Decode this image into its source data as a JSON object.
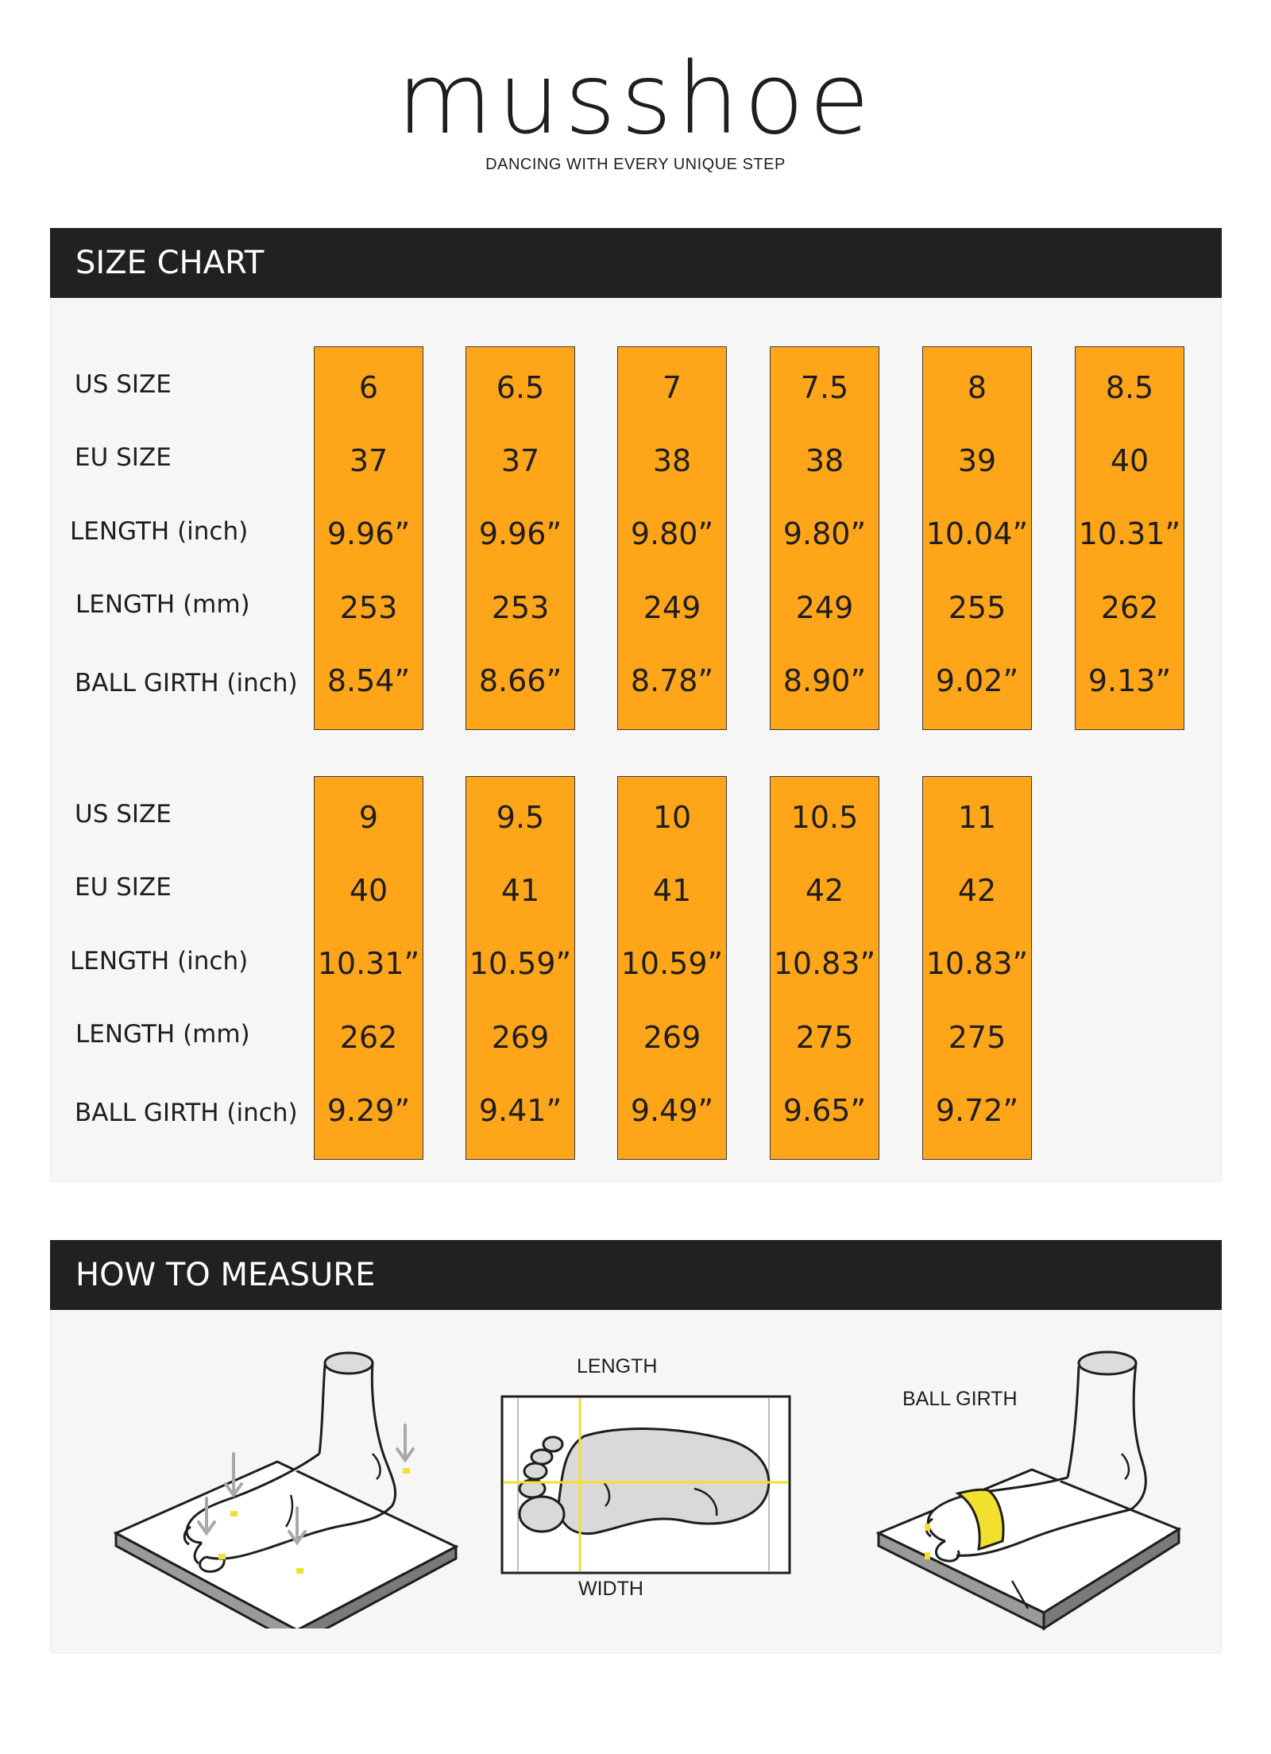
{
  "brand": {
    "logo": "musshoe",
    "tagline": "DANCING WITH EVERY UNIQUE STEP"
  },
  "size_chart": {
    "title": "SIZE CHART",
    "row_labels": [
      "US SIZE",
      "EU SIZE",
      "LENGTH (inch)",
      "LENGTH (mm)",
      "BALL GIRTH (inch)"
    ],
    "blocks": [
      {
        "columns": [
          {
            "us": "6",
            "eu": "37",
            "length_inch": "9.96”",
            "length_mm": "253",
            "ball_girth": "8.54”"
          },
          {
            "us": "6.5",
            "eu": "37",
            "length_inch": "9.96”",
            "length_mm": "253",
            "ball_girth": "8.66”"
          },
          {
            "us": "7",
            "eu": "38",
            "length_inch": "9.80”",
            "length_mm": "249",
            "ball_girth": "8.78”"
          },
          {
            "us": "7.5",
            "eu": "38",
            "length_inch": "9.80”",
            "length_mm": "249",
            "ball_girth": "8.90”"
          },
          {
            "us": "8",
            "eu": "39",
            "length_inch": "10.04”",
            "length_mm": "255",
            "ball_girth": "9.02”"
          },
          {
            "us": "8.5",
            "eu": "40",
            "length_inch": "10.31”",
            "length_mm": "262",
            "ball_girth": "9.13”"
          }
        ]
      },
      {
        "columns": [
          {
            "us": "9",
            "eu": "40",
            "length_inch": "10.31”",
            "length_mm": "262",
            "ball_girth": "9.29”"
          },
          {
            "us": "9.5",
            "eu": "41",
            "length_inch": "10.59”",
            "length_mm": "269",
            "ball_girth": "9.41”"
          },
          {
            "us": "10",
            "eu": "41",
            "length_inch": "10.59”",
            "length_mm": "269",
            "ball_girth": "9.49”"
          },
          {
            "us": "10.5",
            "eu": "42",
            "length_inch": "10.83”",
            "length_mm": "275",
            "ball_girth": "9.65”"
          },
          {
            "us": "11",
            "eu": "42",
            "length_inch": "10.83”",
            "length_mm": "275",
            "ball_girth": "9.72”"
          }
        ]
      }
    ]
  },
  "how_to_measure": {
    "title": "HOW TO MEASURE",
    "length_label": "LENGTH",
    "width_label": "WIDTH",
    "ball_girth_label": "BALL GIRTH"
  },
  "colors": {
    "header_bg": "#212121",
    "cell_fill": "#ffa519",
    "panel_bg": "#f6f6f6",
    "measure_mark": "#f2e02e"
  }
}
